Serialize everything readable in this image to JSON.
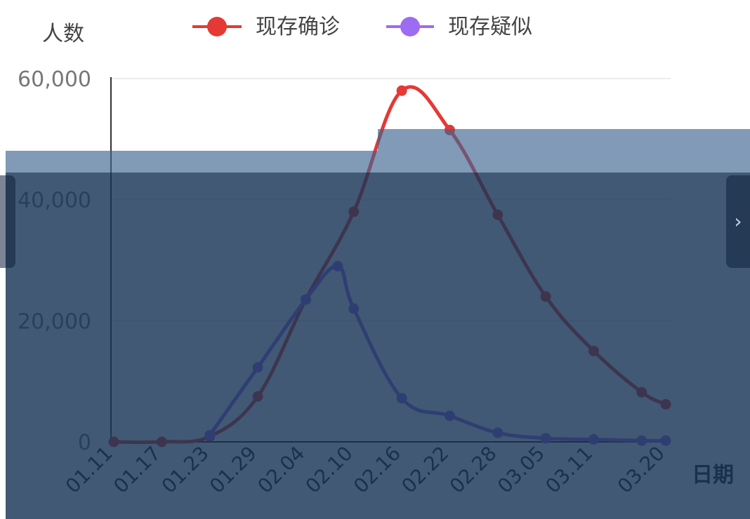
{
  "chart_data": {
    "type": "line",
    "ylabel": "人数",
    "xlabel": "日期",
    "ylim": [
      0,
      60000
    ],
    "y_ticks": [
      "0",
      "20,000",
      "40,000",
      "60,000"
    ],
    "y_tick_values": [
      0,
      20000,
      40000,
      60000
    ],
    "x_tick_labels": [
      "01.11",
      "01.17",
      "01.23",
      "01.29",
      "02.04",
      "02.10",
      "02.16",
      "02.22",
      "02.28",
      "03.05",
      "03.11",
      "03.20"
    ],
    "grid": true,
    "legend_position": "top",
    "series": [
      {
        "name": "现存确诊",
        "color": "#e53935",
        "points": [
          {
            "label": "01.11",
            "value": 0
          },
          {
            "label": "01.17",
            "value": 0
          },
          {
            "label": "01.23",
            "value": 900
          },
          {
            "label": "01.29",
            "value": 7500
          },
          {
            "label": "02.04",
            "value": 23500
          },
          {
            "label": "02.10",
            "value": 38000
          },
          {
            "label": "02.16",
            "value": 58000
          },
          {
            "label": "02.22",
            "value": 51500
          },
          {
            "label": "02.28",
            "value": 37500
          },
          {
            "label": "03.05",
            "value": 24000
          },
          {
            "label": "03.11",
            "value": 15000
          },
          {
            "label": "03.17",
            "value": 8200
          },
          {
            "label": "03.20",
            "value": 6200
          }
        ]
      },
      {
        "name": "现存疑似",
        "color": "#9c6cf2",
        "points": [
          {
            "label": "01.23",
            "value": 1100
          },
          {
            "label": "01.29",
            "value": 12300
          },
          {
            "label": "02.04",
            "value": 23500
          },
          {
            "label": "02.08",
            "value": 29000
          },
          {
            "label": "02.10",
            "value": 22000
          },
          {
            "label": "02.16",
            "value": 7200
          },
          {
            "label": "02.22",
            "value": 4300
          },
          {
            "label": "02.28",
            "value": 1500
          },
          {
            "label": "03.05",
            "value": 600
          },
          {
            "label": "03.11",
            "value": 400
          },
          {
            "label": "03.17",
            "value": 200
          },
          {
            "label": "03.20",
            "value": 200
          }
        ]
      }
    ]
  }
}
